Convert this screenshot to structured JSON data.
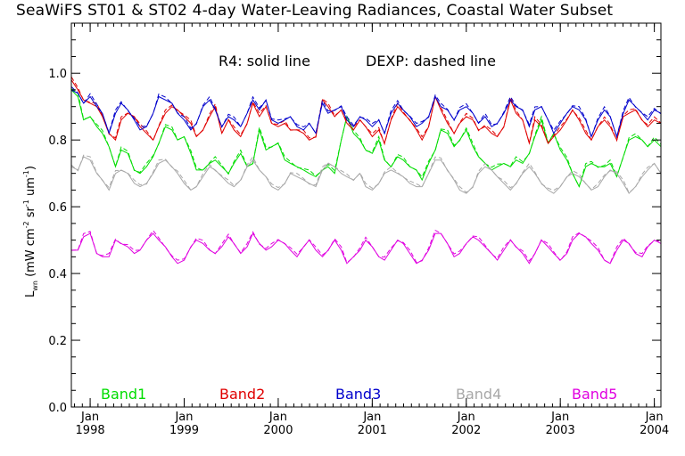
{
  "chart_data": {
    "type": "line",
    "title": "SeaWiFS ST01 & ST02 4-day Water-Leaving Radiances, Coastal Water Subset",
    "ylabel": "L_wn (mW cm^-2 sr^-1 um^-1)",
    "ylabel_parts": {
      "main": "L",
      "sub": "wn",
      "pre_units": " (mW cm",
      "exp1": "-2",
      "mid": " sr",
      "exp2": "-1",
      "mid2": " um",
      "exp3": "-1",
      "close": ")"
    },
    "xlabel": "",
    "annotations": [
      "R4: solid line",
      "DEXP: dashed line"
    ],
    "ylim": [
      0.0,
      1.15
    ],
    "xlim": [
      1997.8,
      2004.07
    ],
    "yticks": [
      "0.0",
      "0.2",
      "0.4",
      "0.6",
      "0.8",
      "1.0"
    ],
    "xticks": [
      {
        "x": 1998,
        "month": "Jan",
        "year": "1998"
      },
      {
        "x": 1999,
        "month": "Jan",
        "year": "1999"
      },
      {
        "x": 2000,
        "month": "Jan",
        "year": "2000"
      },
      {
        "x": 2001,
        "month": "Jan",
        "year": "2001"
      },
      {
        "x": 2002,
        "month": "Jan",
        "year": "2002"
      },
      {
        "x": 2003,
        "month": "Jan",
        "year": "2003"
      },
      {
        "x": 2004,
        "month": "Jan",
        "year": "2004"
      }
    ],
    "x": [
      1997.8,
      1997.87,
      1997.93,
      1998.0,
      1998.07,
      1998.13,
      1998.2,
      1998.27,
      1998.33,
      1998.4,
      1998.47,
      1998.53,
      1998.6,
      1998.67,
      1998.73,
      1998.8,
      1998.87,
      1998.93,
      1999.0,
      1999.07,
      1999.13,
      1999.2,
      1999.27,
      1999.33,
      1999.4,
      1999.47,
      1999.53,
      1999.6,
      1999.67,
      1999.73,
      1999.8,
      1999.87,
      1999.93,
      2000.0,
      2000.07,
      2000.13,
      2000.2,
      2000.27,
      2000.33,
      2000.4,
      2000.47,
      2000.53,
      2000.6,
      2000.67,
      2000.73,
      2000.8,
      2000.87,
      2000.93,
      2001.0,
      2001.07,
      2001.13,
      2001.2,
      2001.27,
      2001.33,
      2001.4,
      2001.47,
      2001.53,
      2001.6,
      2001.67,
      2001.73,
      2001.8,
      2001.87,
      2001.93,
      2002.0,
      2002.07,
      2002.13,
      2002.2,
      2002.27,
      2002.33,
      2002.4,
      2002.47,
      2002.53,
      2002.6,
      2002.67,
      2002.73,
      2002.8,
      2002.87,
      2002.93,
      2003.0,
      2003.07,
      2003.13,
      2003.2,
      2003.27,
      2003.33,
      2003.4,
      2003.47,
      2003.53,
      2003.6,
      2003.67,
      2003.73,
      2003.8,
      2003.87,
      2003.93,
      2004.0,
      2004.07
    ],
    "series": [
      {
        "name": "Band1",
        "color": "#00dd00",
        "values": [
          0.95,
          0.93,
          0.86,
          0.87,
          0.84,
          0.82,
          0.78,
          0.72,
          0.77,
          0.76,
          0.71,
          0.7,
          0.72,
          0.75,
          0.79,
          0.84,
          0.83,
          0.8,
          0.81,
          0.76,
          0.71,
          0.71,
          0.73,
          0.74,
          0.72,
          0.7,
          0.73,
          0.76,
          0.72,
          0.73,
          0.83,
          0.77,
          0.78,
          0.79,
          0.74,
          0.73,
          0.72,
          0.71,
          0.7,
          0.69,
          0.71,
          0.72,
          0.7,
          0.8,
          0.87,
          0.82,
          0.8,
          0.77,
          0.76,
          0.8,
          0.74,
          0.72,
          0.75,
          0.74,
          0.72,
          0.71,
          0.68,
          0.73,
          0.77,
          0.83,
          0.82,
          0.78,
          0.8,
          0.83,
          0.78,
          0.75,
          0.73,
          0.71,
          0.72,
          0.73,
          0.72,
          0.74,
          0.73,
          0.76,
          0.81,
          0.86,
          0.79,
          0.82,
          0.77,
          0.74,
          0.7,
          0.66,
          0.72,
          0.73,
          0.72,
          0.72,
          0.73,
          0.69,
          0.75,
          0.8,
          0.81,
          0.8,
          0.78,
          0.8,
          0.78
        ]
      },
      {
        "name": "Band2",
        "color": "#e00000",
        "values": [
          0.98,
          0.95,
          0.92,
          0.91,
          0.9,
          0.87,
          0.82,
          0.8,
          0.86,
          0.88,
          0.87,
          0.84,
          0.82,
          0.8,
          0.84,
          0.88,
          0.9,
          0.89,
          0.87,
          0.85,
          0.81,
          0.83,
          0.87,
          0.9,
          0.82,
          0.86,
          0.83,
          0.81,
          0.85,
          0.91,
          0.87,
          0.9,
          0.85,
          0.84,
          0.85,
          0.83,
          0.83,
          0.82,
          0.8,
          0.81,
          0.92,
          0.9,
          0.87,
          0.89,
          0.85,
          0.83,
          0.86,
          0.84,
          0.81,
          0.83,
          0.79,
          0.86,
          0.9,
          0.88,
          0.86,
          0.83,
          0.8,
          0.84,
          0.93,
          0.89,
          0.85,
          0.82,
          0.85,
          0.87,
          0.86,
          0.83,
          0.84,
          0.82,
          0.81,
          0.84,
          0.92,
          0.88,
          0.86,
          0.79,
          0.86,
          0.84,
          0.79,
          0.81,
          0.83,
          0.86,
          0.89,
          0.86,
          0.82,
          0.8,
          0.84,
          0.86,
          0.84,
          0.8,
          0.87,
          0.88,
          0.89,
          0.86,
          0.84,
          0.86,
          0.85
        ]
      },
      {
        "name": "Band3",
        "color": "#0000cc",
        "values": [
          0.95,
          0.94,
          0.91,
          0.93,
          0.9,
          0.88,
          0.82,
          0.88,
          0.91,
          0.89,
          0.86,
          0.83,
          0.84,
          0.88,
          0.93,
          0.92,
          0.91,
          0.88,
          0.86,
          0.83,
          0.85,
          0.9,
          0.92,
          0.89,
          0.84,
          0.87,
          0.86,
          0.84,
          0.88,
          0.92,
          0.89,
          0.92,
          0.86,
          0.85,
          0.86,
          0.87,
          0.84,
          0.83,
          0.85,
          0.82,
          0.91,
          0.88,
          0.89,
          0.9,
          0.86,
          0.84,
          0.87,
          0.86,
          0.84,
          0.86,
          0.82,
          0.88,
          0.91,
          0.89,
          0.87,
          0.84,
          0.85,
          0.87,
          0.93,
          0.9,
          0.89,
          0.86,
          0.89,
          0.9,
          0.88,
          0.85,
          0.87,
          0.84,
          0.85,
          0.88,
          0.92,
          0.9,
          0.89,
          0.84,
          0.89,
          0.9,
          0.86,
          0.82,
          0.85,
          0.88,
          0.9,
          0.89,
          0.86,
          0.81,
          0.86,
          0.89,
          0.87,
          0.81,
          0.88,
          0.92,
          0.9,
          0.88,
          0.86,
          0.89,
          0.88
        ]
      },
      {
        "name": "Band4",
        "color": "#a8a8a8",
        "values": [
          0.72,
          0.71,
          0.75,
          0.74,
          0.7,
          0.68,
          0.65,
          0.7,
          0.71,
          0.7,
          0.67,
          0.66,
          0.67,
          0.7,
          0.73,
          0.74,
          0.72,
          0.7,
          0.67,
          0.65,
          0.66,
          0.69,
          0.72,
          0.71,
          0.69,
          0.67,
          0.66,
          0.68,
          0.72,
          0.74,
          0.71,
          0.69,
          0.66,
          0.65,
          0.67,
          0.7,
          0.69,
          0.68,
          0.67,
          0.66,
          0.71,
          0.73,
          0.72,
          0.7,
          0.69,
          0.68,
          0.7,
          0.66,
          0.65,
          0.67,
          0.7,
          0.71,
          0.7,
          0.69,
          0.67,
          0.66,
          0.66,
          0.7,
          0.74,
          0.74,
          0.71,
          0.68,
          0.65,
          0.64,
          0.66,
          0.7,
          0.72,
          0.71,
          0.69,
          0.67,
          0.65,
          0.67,
          0.7,
          0.72,
          0.7,
          0.67,
          0.65,
          0.64,
          0.66,
          0.69,
          0.7,
          0.69,
          0.67,
          0.65,
          0.66,
          0.69,
          0.71,
          0.7,
          0.67,
          0.64,
          0.66,
          0.69,
          0.71,
          0.73,
          0.7
        ]
      },
      {
        "name": "Band5",
        "color": "#e000e0",
        "values": [
          0.47,
          0.47,
          0.51,
          0.52,
          0.46,
          0.45,
          0.45,
          0.5,
          0.49,
          0.48,
          0.46,
          0.47,
          0.5,
          0.52,
          0.5,
          0.48,
          0.45,
          0.43,
          0.44,
          0.48,
          0.5,
          0.49,
          0.47,
          0.46,
          0.48,
          0.51,
          0.49,
          0.46,
          0.48,
          0.52,
          0.49,
          0.47,
          0.48,
          0.5,
          0.49,
          0.47,
          0.45,
          0.48,
          0.5,
          0.47,
          0.45,
          0.47,
          0.5,
          0.47,
          0.43,
          0.45,
          0.47,
          0.5,
          0.48,
          0.45,
          0.44,
          0.47,
          0.5,
          0.49,
          0.46,
          0.43,
          0.44,
          0.47,
          0.52,
          0.52,
          0.49,
          0.45,
          0.46,
          0.49,
          0.51,
          0.5,
          0.48,
          0.46,
          0.44,
          0.47,
          0.5,
          0.48,
          0.46,
          0.43,
          0.46,
          0.5,
          0.48,
          0.46,
          0.44,
          0.46,
          0.5,
          0.52,
          0.51,
          0.49,
          0.47,
          0.44,
          0.43,
          0.47,
          0.5,
          0.49,
          0.46,
          0.45,
          0.48,
          0.5,
          0.49
        ]
      }
    ],
    "line_styles": {
      "R4": "solid",
      "DEXP": "dashed"
    },
    "grid": false,
    "legend": "bottom"
  }
}
